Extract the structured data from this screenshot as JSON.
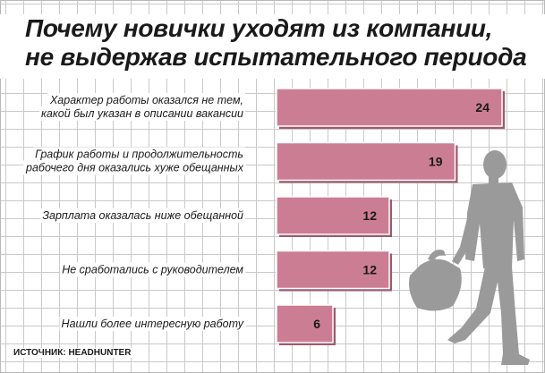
{
  "title_lines": [
    "Почему новички уходят из компании,",
    "не выдержав испытательного периода"
  ],
  "source": "ИСТОЧНИК: HEADHUNTER",
  "colors": {
    "bar": "#cb7d94",
    "bar_shadow": "#9e5a6e",
    "silhouette": "#9a9a9a",
    "grid": "#c9c9c9"
  },
  "illustration": "walking-businessman-with-bag",
  "chart_data": {
    "type": "bar",
    "orientation": "horizontal",
    "title": "Почему новички уходят из компании, не выдержав испытательного периода",
    "categories": [
      [
        "Характер работы оказался не тем,",
        "какой был указан в описании вакансии"
      ],
      [
        "График работы и продолжительность",
        "рабочего дня оказались хуже обещанных"
      ],
      [
        "Зарплата оказалась ниже обещанной"
      ],
      [
        "Не сработались с руководителем"
      ],
      [
        "Нашли более интересную работу"
      ]
    ],
    "values": [
      24,
      19,
      12,
      12,
      6
    ],
    "xlim": [
      0,
      24
    ]
  }
}
